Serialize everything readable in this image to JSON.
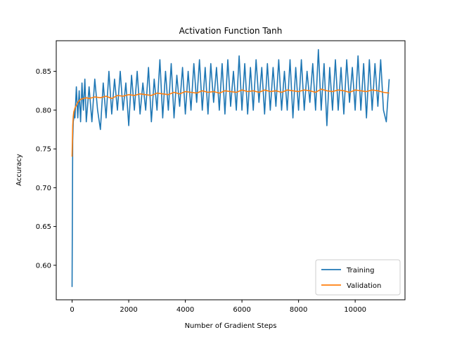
{
  "chart_data": {
    "type": "line",
    "title": "Activation Function Tanh",
    "xlabel": "Number of Gradient Steps",
    "ylabel": "Accuracy",
    "xlim": [
      -560,
      11760
    ],
    "ylim": [
      0.5555,
      0.8895
    ],
    "xticks": [
      0,
      2000,
      4000,
      6000,
      8000,
      10000
    ],
    "xtick_labels": [
      "0",
      "2000",
      "4000",
      "6000",
      "8000",
      "10000"
    ],
    "yticks": [
      0.6,
      0.65,
      0.7,
      0.75,
      0.8,
      0.85
    ],
    "ytick_labels": [
      "0.60",
      "0.65",
      "0.70",
      "0.75",
      "0.80",
      "0.85"
    ],
    "grid": false,
    "legend_position": "bottom-right",
    "series": [
      {
        "name": "Training",
        "color": "#1f77b4",
        "x": [
          0,
          20,
          40,
          60,
          80,
          100,
          150,
          200,
          250,
          300,
          350,
          400,
          450,
          500,
          600,
          700,
          800,
          900,
          1000,
          1100,
          1200,
          1300,
          1400,
          1500,
          1600,
          1700,
          1800,
          1900,
          2000,
          2100,
          2200,
          2300,
          2400,
          2500,
          2600,
          2700,
          2800,
          2900,
          3000,
          3100,
          3200,
          3300,
          3400,
          3500,
          3600,
          3700,
          3800,
          3900,
          4000,
          4100,
          4200,
          4300,
          4400,
          4500,
          4600,
          4700,
          4800,
          4900,
          5000,
          5100,
          5200,
          5300,
          5400,
          5500,
          5600,
          5700,
          5800,
          5900,
          6000,
          6100,
          6200,
          6300,
          6400,
          6500,
          6600,
          6700,
          6800,
          6900,
          7000,
          7100,
          7200,
          7300,
          7400,
          7500,
          7600,
          7700,
          7800,
          7900,
          8000,
          8100,
          8200,
          8300,
          8400,
          8500,
          8600,
          8700,
          8800,
          8900,
          9000,
          9100,
          9200,
          9300,
          9400,
          9500,
          9600,
          9700,
          9800,
          9900,
          10000,
          10100,
          10200,
          10300,
          10400,
          10500,
          10600,
          10700,
          10800,
          10900,
          11000,
          11100,
          11200
        ],
        "values": [
          0.572,
          0.76,
          0.785,
          0.79,
          0.8,
          0.79,
          0.83,
          0.79,
          0.825,
          0.785,
          0.835,
          0.8,
          0.84,
          0.785,
          0.83,
          0.785,
          0.84,
          0.8,
          0.775,
          0.835,
          0.79,
          0.85,
          0.795,
          0.84,
          0.8,
          0.85,
          0.8,
          0.835,
          0.78,
          0.845,
          0.8,
          0.85,
          0.795,
          0.835,
          0.8,
          0.855,
          0.785,
          0.84,
          0.8,
          0.865,
          0.79,
          0.85,
          0.8,
          0.86,
          0.79,
          0.845,
          0.805,
          0.855,
          0.795,
          0.85,
          0.8,
          0.86,
          0.81,
          0.865,
          0.8,
          0.855,
          0.795,
          0.86,
          0.81,
          0.855,
          0.8,
          0.86,
          0.795,
          0.865,
          0.805,
          0.85,
          0.8,
          0.87,
          0.8,
          0.86,
          0.795,
          0.855,
          0.8,
          0.865,
          0.81,
          0.855,
          0.795,
          0.86,
          0.8,
          0.855,
          0.805,
          0.865,
          0.8,
          0.85,
          0.8,
          0.865,
          0.79,
          0.855,
          0.8,
          0.865,
          0.8,
          0.85,
          0.81,
          0.86,
          0.8,
          0.878,
          0.8,
          0.86,
          0.78,
          0.855,
          0.8,
          0.865,
          0.8,
          0.855,
          0.795,
          0.865,
          0.81,
          0.855,
          0.8,
          0.87,
          0.8,
          0.86,
          0.79,
          0.865,
          0.8,
          0.86,
          0.805,
          0.865,
          0.8,
          0.785,
          0.84
        ]
      },
      {
        "name": "Validation",
        "color": "#ff7f0e",
        "x": [
          0,
          20,
          40,
          60,
          80,
          100,
          150,
          200,
          250,
          300,
          400,
          500,
          600,
          800,
          1000,
          1200,
          1400,
          1600,
          1800,
          2000,
          2200,
          2400,
          2600,
          2800,
          3000,
          3200,
          3400,
          3600,
          3800,
          4000,
          4200,
          4400,
          4600,
          4800,
          5000,
          5200,
          5400,
          5600,
          5800,
          6000,
          6200,
          6400,
          6600,
          6800,
          7000,
          7200,
          7400,
          7600,
          7800,
          8000,
          8200,
          8400,
          8600,
          8800,
          9000,
          9200,
          9400,
          9600,
          9800,
          10000,
          10200,
          10400,
          10600,
          10800,
          11000,
          11200
        ],
        "values": [
          0.74,
          0.78,
          0.792,
          0.798,
          0.8,
          0.803,
          0.806,
          0.81,
          0.812,
          0.814,
          0.815,
          0.816,
          0.815,
          0.817,
          0.816,
          0.818,
          0.815,
          0.819,
          0.818,
          0.82,
          0.819,
          0.821,
          0.82,
          0.819,
          0.822,
          0.821,
          0.82,
          0.823,
          0.821,
          0.824,
          0.823,
          0.822,
          0.825,
          0.823,
          0.824,
          0.822,
          0.825,
          0.824,
          0.823,
          0.826,
          0.824,
          0.825,
          0.823,
          0.826,
          0.824,
          0.825,
          0.823,
          0.826,
          0.825,
          0.824,
          0.826,
          0.825,
          0.823,
          0.827,
          0.825,
          0.824,
          0.826,
          0.825,
          0.823,
          0.826,
          0.825,
          0.824,
          0.826,
          0.825,
          0.823,
          0.822
        ]
      }
    ]
  }
}
